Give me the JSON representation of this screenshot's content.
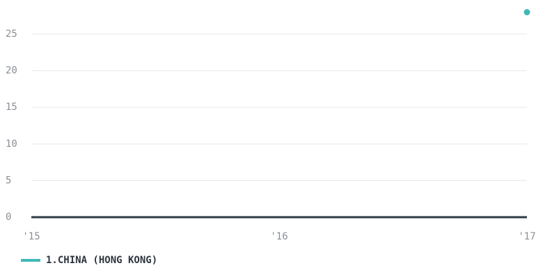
{
  "chart_data": {
    "type": "line",
    "categories": [
      "'15",
      "'16",
      "'17"
    ],
    "series": [
      {
        "name": "1.CHINA (HONG KONG)",
        "color": "#40b8b8",
        "values": [
          null,
          null,
          28
        ]
      }
    ],
    "ylim": [
      0,
      28
    ],
    "yticks": [
      0,
      5,
      10,
      15,
      20,
      25
    ],
    "grid": true
  }
}
